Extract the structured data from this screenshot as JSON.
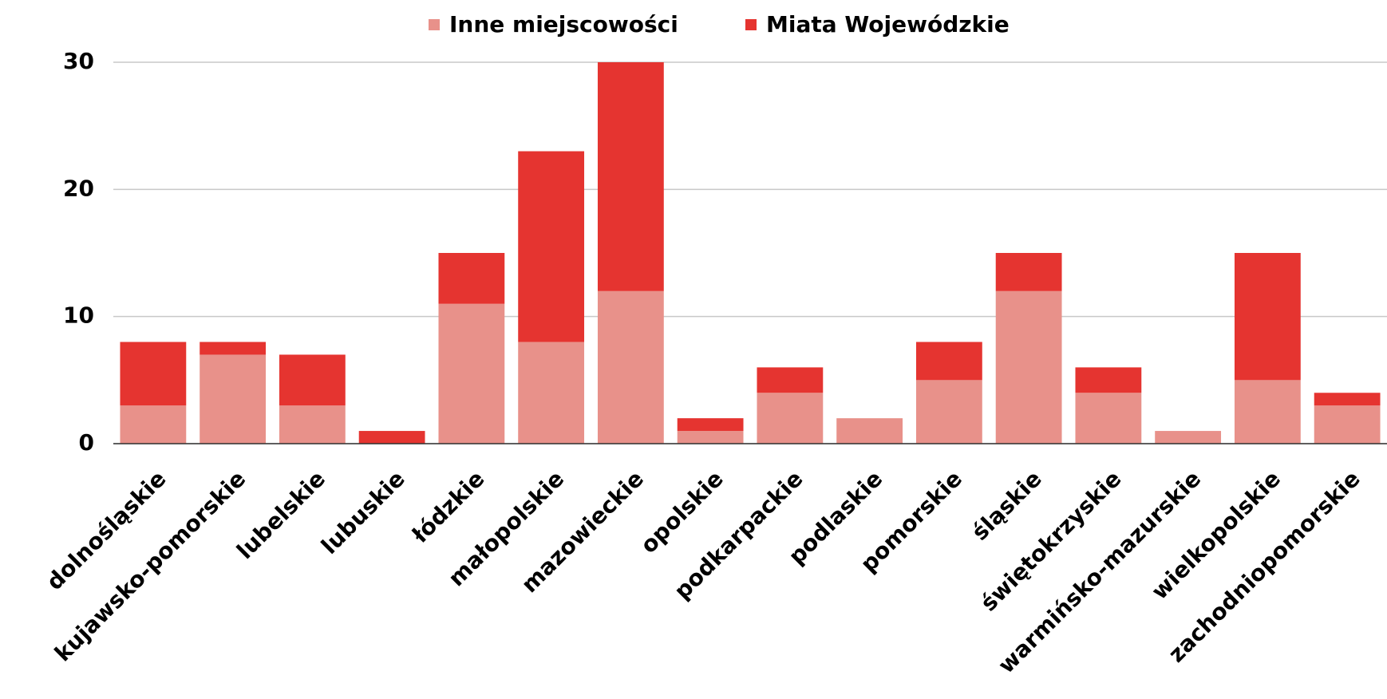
{
  "chart_data": {
    "type": "stacked_bar",
    "categories": [
      "dolnośląskie",
      "kujawsko-pomorskie",
      "lubelskie",
      "lubuskie",
      "łódzkie",
      "małopolskie",
      "mazowieckie",
      "opolskie",
      "podkarpackie",
      "podlaskie",
      "pomorskie",
      "śląskie",
      "świętokrzyskie",
      "warmińsko-mazurskie",
      "wielkopolskie",
      "zachodniopomorskie"
    ],
    "series": [
      {
        "name": "Inne miejscowości",
        "color": "#e8918a",
        "values": [
          3,
          7,
          3,
          0,
          11,
          8,
          12,
          1,
          4,
          2,
          5,
          12,
          4,
          1,
          5,
          3
        ]
      },
      {
        "name": "Miata Wojewódzkie",
        "color": "#e53430",
        "values": [
          5,
          1,
          4,
          1,
          4,
          15,
          18,
          1,
          2,
          0,
          3,
          3,
          2,
          0,
          10,
          1
        ]
      }
    ],
    "ylim": [
      0,
      30
    ],
    "yticks": [
      0,
      10,
      20,
      30
    ],
    "grid": true,
    "legend": "top"
  }
}
